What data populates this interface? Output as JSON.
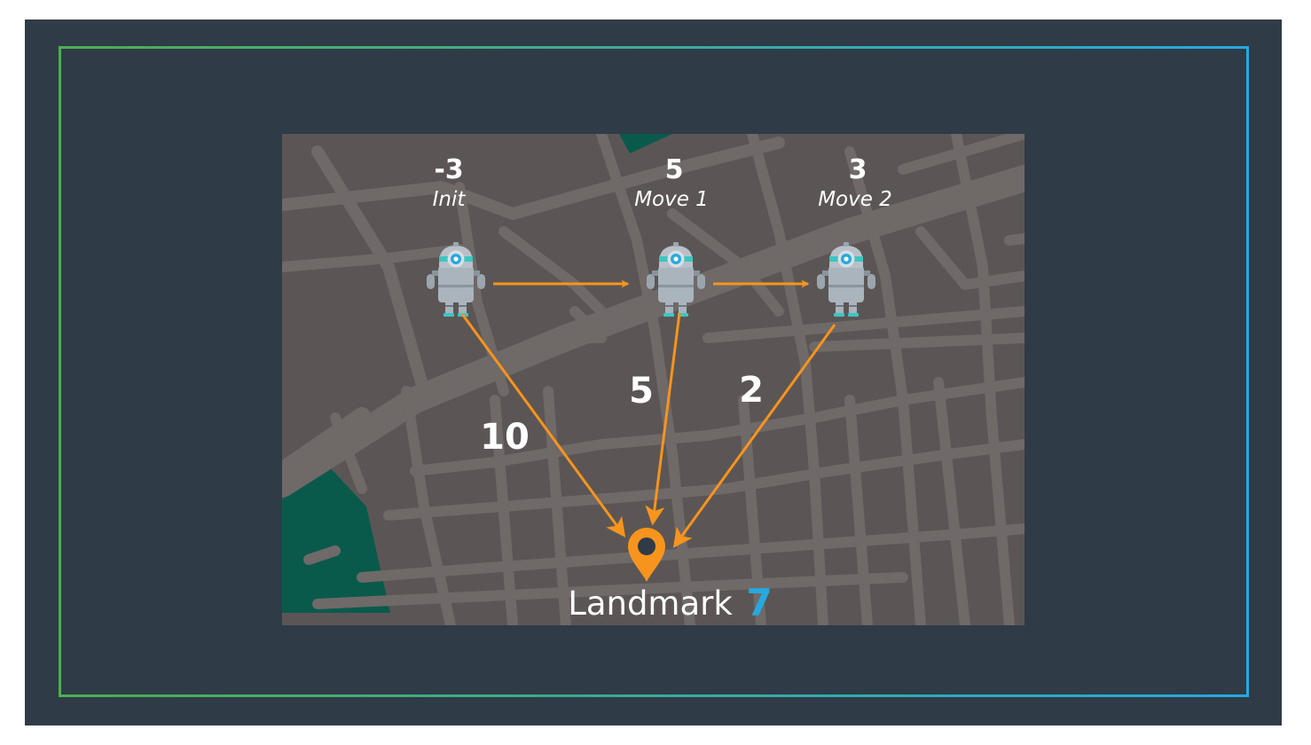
{
  "poses": [
    {
      "value": "-3",
      "label": "Init"
    },
    {
      "value": "5",
      "label": "Move 1"
    },
    {
      "value": "3",
      "label": "Move 2"
    }
  ],
  "distances": [
    "10",
    "5",
    "2"
  ],
  "landmark": {
    "label": "Landmark",
    "value": "7"
  },
  "icons": {
    "robot": "robot-icon",
    "landmark": "map-pin-icon"
  },
  "colors": {
    "background": "#2f3b47",
    "map": "#5b5655",
    "roads": "#6f6968",
    "park": "#0a5a4c",
    "arrow": "#f7941d",
    "landmark_value": "#26a9e0",
    "frame_start": "#4caf50",
    "frame_end": "#26a9e0"
  }
}
